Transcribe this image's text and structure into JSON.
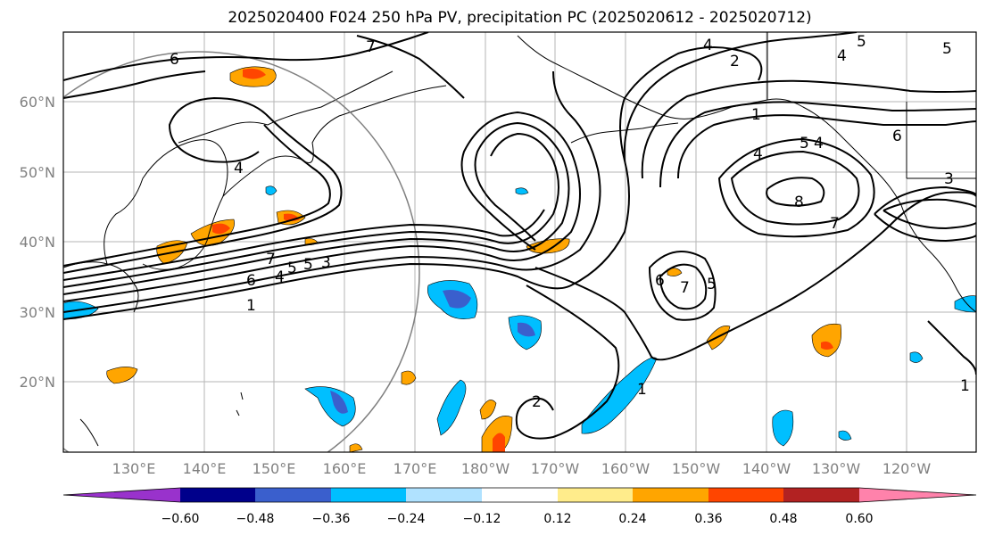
{
  "title": "2025020400 F024 250 hPa PV, precipitation PC (2025020612 - 2025020712)",
  "lat_labels": [
    "60°N",
    "50°N",
    "40°N",
    "30°N",
    "20°N"
  ],
  "lon_labels": [
    "130°E",
    "140°E",
    "150°E",
    "160°E",
    "170°E",
    "180°W",
    "170°W",
    "160°W",
    "150°W",
    "140°W",
    "130°W",
    "120°W"
  ],
  "colorbar": {
    "ticks": [
      "−0.60",
      "−0.48",
      "−0.36",
      "−0.24",
      "−0.12",
      "0.12",
      "0.24",
      "0.36",
      "0.48",
      "0.60"
    ],
    "colors": [
      "#9932cc",
      "#00008b",
      "#3a5fcd",
      "#00bfff",
      "#b0e2ff",
      "#ffffff",
      "#ffec8b",
      "#ffa500",
      "#ff4500",
      "#b22222",
      "#ff82ab"
    ]
  },
  "pv_labels": [
    "6",
    "7",
    "4",
    "5",
    "6",
    "7",
    "4",
    "5",
    "3",
    "1",
    "2",
    "4",
    "1",
    "4",
    "5",
    "4",
    "6",
    "8",
    "7",
    "5",
    "7",
    "6",
    "5",
    "4",
    "1",
    "2",
    "1",
    "5",
    "3"
  ]
}
